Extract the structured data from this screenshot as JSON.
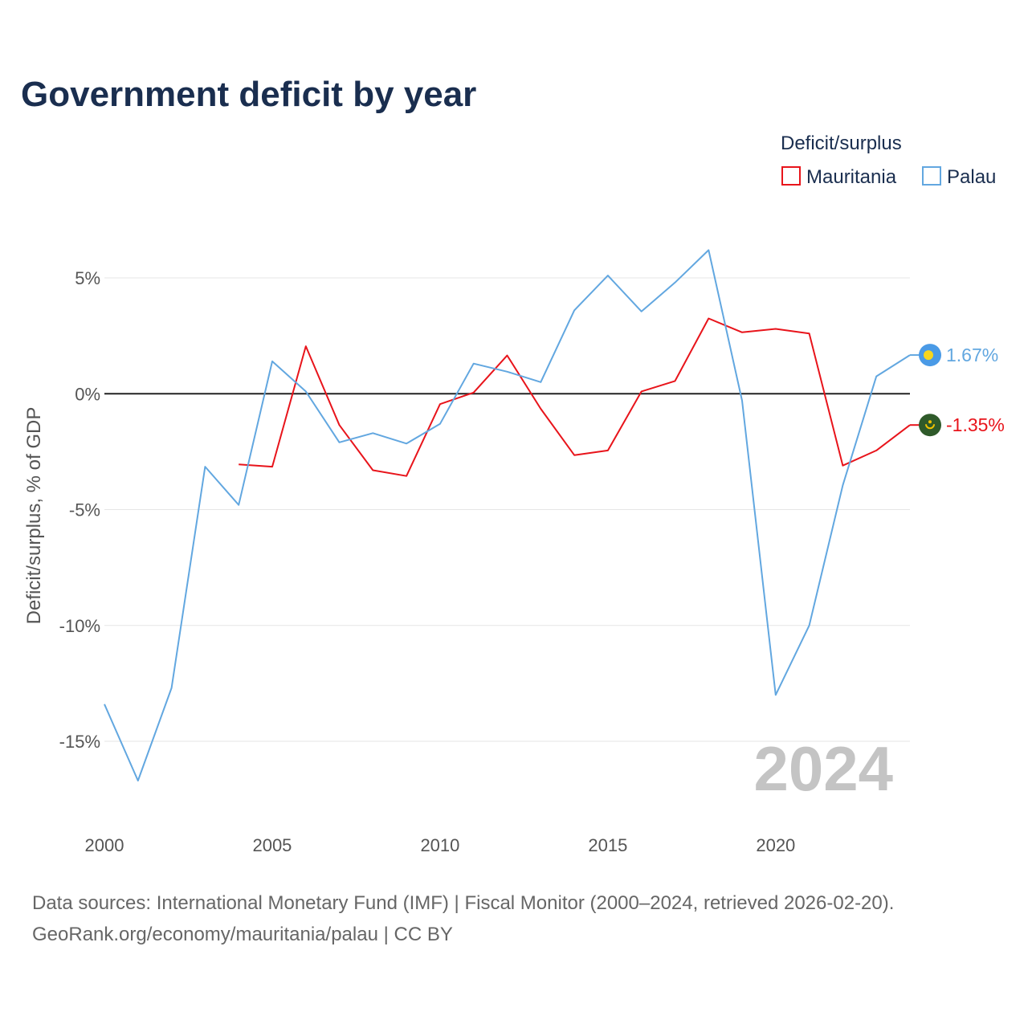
{
  "colors": {
    "mauritania": "#e8141b",
    "palau": "#62a7e0",
    "zero_line": "#222222",
    "grid": "#e6e6e6",
    "palau_flag_bg": "#4a9ae6",
    "palau_flag_disc": "#f7d51d",
    "mauritania_flag_bg": "#2f5a2a",
    "mauritania_flag_emblem": "#f2c200"
  },
  "chart_data": {
    "type": "line",
    "title": "Government deficit by year",
    "ylabel": "Deficit/surplus, % of GDP",
    "xlabel": "",
    "xlim": [
      2000,
      2024
    ],
    "ylim": [
      -17.5,
      7
    ],
    "x_ticks": [
      2000,
      2005,
      2010,
      2015,
      2020
    ],
    "x_tick_labels": [
      "2000",
      "2005",
      "2010",
      "2015",
      "2020"
    ],
    "y_ticks": [
      5,
      0,
      -5,
      -10,
      -15
    ],
    "y_tick_labels": [
      "5%",
      "0%",
      "-5%",
      "-10%",
      "-15%"
    ],
    "legend_title": "Deficit/surplus",
    "legend_position": "top-right",
    "highlight_year": "2024",
    "series": [
      {
        "name": "Mauritania",
        "color_key": "mauritania",
        "end_label": "-1.35%",
        "flag_icon": "mauritania-flag-icon",
        "x": [
          2004,
          2005,
          2006,
          2007,
          2008,
          2009,
          2010,
          2011,
          2012,
          2013,
          2014,
          2015,
          2016,
          2017,
          2018,
          2019,
          2020,
          2021,
          2022,
          2023,
          2024
        ],
        "values": [
          -3.05,
          -3.15,
          2.05,
          -1.35,
          -3.3,
          -3.55,
          -0.45,
          0.05,
          1.65,
          -0.65,
          -2.65,
          -2.45,
          0.1,
          0.55,
          3.25,
          2.65,
          2.8,
          2.6,
          -3.1,
          -2.45,
          -1.35
        ]
      },
      {
        "name": "Palau",
        "color_key": "palau",
        "end_label": "1.67%",
        "flag_icon": "palau-flag-icon",
        "x": [
          2000,
          2001,
          2002,
          2003,
          2004,
          2005,
          2006,
          2007,
          2008,
          2009,
          2010,
          2011,
          2012,
          2013,
          2014,
          2015,
          2016,
          2017,
          2018,
          2019,
          2020,
          2021,
          2022,
          2023,
          2024
        ],
        "values": [
          -13.4,
          -16.7,
          -12.7,
          -3.15,
          -4.8,
          1.4,
          0.1,
          -2.1,
          -1.7,
          -2.15,
          -1.3,
          1.3,
          0.95,
          0.5,
          3.6,
          5.1,
          3.55,
          4.8,
          6.2,
          -0.3,
          -13.0,
          -10.0,
          -3.95,
          0.75,
          1.67
        ]
      }
    ]
  },
  "source": {
    "line1": "Data sources: International Monetary Fund (IMF) | Fiscal Monitor (2000–2024, retrieved 2026-02-20).",
    "line2": "GeoRank.org/economy/mauritania/palau | CC BY"
  }
}
